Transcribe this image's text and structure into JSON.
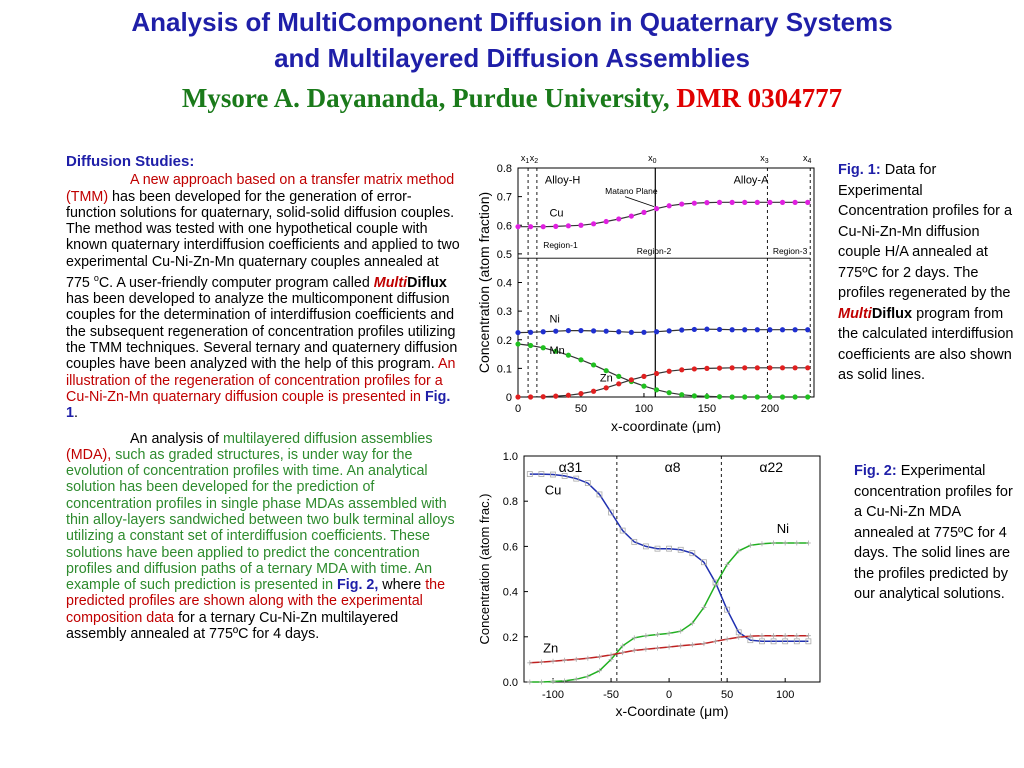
{
  "header": {
    "title_line1": "Analysis of MultiComponent Diffusion in Quaternary Systems",
    "title_line2": "and  Multilayered Diffusion Assemblies",
    "author": "Mysore A. Dayananda, Purdue University,",
    "grant": "DMR 0304777"
  },
  "body": {
    "heading": "Diffusion Studies:",
    "p1": {
      "s1": "A new approach based on a transfer matrix method (TMM)",
      "s2": " has been developed for the generation of error-function solutions for quaternary, solid-solid diffusion couples. The method was tested with one hypothetical couple with known quaternary interdiffusion coefficients and applied to two experimental Cu-Ni-Zn-Mn quaternary couples annealed at 775 ",
      "sup": "o",
      "s3": "C. A user-friendly computer program called ",
      "multi": "Multi",
      "diflux": "Diflux",
      "s4": " has been developed to analyze the multicomponent diffusion couples for the determination of interdiffusion coefficients and the subsequent regeneration of concentration profiles utilizing the TMM techniques. Several ternary and quaternery diffusion couples have been analyzed with the help of this program. ",
      "s5": "An illustration of the regeneration of concentration profiles for a Cu-Ni-Zn-Mn quaternary diffusion couple is presented in ",
      "fig": "Fig. 1",
      "s6": "."
    },
    "p2": {
      "s1": "An analysis of ",
      "s2": "multilayered diffusion assemblies",
      "s3": " (MDA),",
      "s4": " such as graded structures, is under way for the evolution of concentration profiles with time. An analytical solution has been developed for the prediction of concentration profiles in single phase MDAs assembled with thin alloy-layers sandwiched between two bulk terminal alloys utilizing a constant set of interdiffusion coefficients. These solutions have been applied to predict the concentration profiles and diffusion paths of a ternary MDA with time. An example of such prediction is presented in ",
      "fig": "Fig. 2,",
      "s5": " where ",
      "s6": "the predicted profiles are shown along with the experimental composition data",
      "s7": " for a ternary Cu-Ni-Zn multilayered assembly annealed at 775ºC for 4 days."
    }
  },
  "captions": {
    "fig1": {
      "label": "Fig. 1:",
      "t1": " Data for Experimental Concentration profiles for a Cu-Ni-Zn-Mn diffusion couple H/A annealed at 775ºC for 2 days. The profiles regenerated by the ",
      "multi": "Multi",
      "diflux": "Diflux",
      "t2": " program from the calculated interdiffusion coefficients are also shown as solid lines."
    },
    "fig2": {
      "label": "Fig. 2:",
      "t1": " Experimental concentration profiles for a Cu-Ni-Zn MDA annealed at 775ºC for 4 days. The solid lines are the profiles predicted by our analytical solutions."
    }
  },
  "chart_data": [
    {
      "type": "line",
      "xlabel": "x-coordinate (μm)",
      "ylabel": "Concentration (atom fraction)",
      "xlim": [
        0,
        235
      ],
      "ylim": [
        0,
        0.8
      ],
      "xticks": [
        0,
        50,
        100,
        150,
        200
      ],
      "yticks": [
        0,
        0.1,
        0.2,
        0.3,
        0.4,
        0.5,
        0.6,
        0.7,
        0.8
      ],
      "annotations": {
        "left_alloy": "Alloy-H",
        "right_alloy": "Alloy-A",
        "matano": "Matano Plane",
        "region1": "Region-1",
        "region2": "Region-2",
        "region3": "Region-3"
      },
      "markers": [
        {
          "label": "x",
          "sub": "1",
          "x": 8
        },
        {
          "label": "x",
          "sub": "2",
          "x": 15
        },
        {
          "label": "x",
          "sub": "0",
          "x": 109
        },
        {
          "label": "x",
          "sub": "3",
          "x": 198
        },
        {
          "label": "x",
          "sub": "4",
          "x": 232
        }
      ],
      "series": [
        {
          "name": "Cu",
          "color": "#e020e0",
          "x": [
            0,
            10,
            20,
            30,
            40,
            50,
            60,
            70,
            80,
            90,
            100,
            110,
            120,
            130,
            140,
            150,
            160,
            170,
            180,
            190,
            200,
            210,
            220,
            230
          ],
          "y": [
            0.595,
            0.595,
            0.595,
            0.596,
            0.598,
            0.6,
            0.605,
            0.613,
            0.622,
            0.632,
            0.645,
            0.658,
            0.668,
            0.674,
            0.677,
            0.679,
            0.68,
            0.68,
            0.68,
            0.68,
            0.68,
            0.68,
            0.68,
            0.68
          ]
        },
        {
          "name": "Ni",
          "color": "#1f2fd0",
          "x": [
            0,
            10,
            20,
            30,
            40,
            50,
            60,
            70,
            80,
            90,
            100,
            110,
            120,
            130,
            140,
            150,
            160,
            170,
            180,
            190,
            200,
            210,
            220,
            230
          ],
          "y": [
            0.225,
            0.226,
            0.228,
            0.23,
            0.232,
            0.232,
            0.231,
            0.23,
            0.228,
            0.226,
            0.226,
            0.228,
            0.231,
            0.234,
            0.236,
            0.237,
            0.236,
            0.235,
            0.235,
            0.235,
            0.235,
            0.235,
            0.235,
            0.235
          ]
        },
        {
          "name": "Mn",
          "color": "#20c020",
          "x": [
            0,
            10,
            20,
            30,
            40,
            50,
            60,
            70,
            80,
            90,
            100,
            110,
            120,
            130,
            140,
            150,
            160,
            170,
            180,
            190,
            200,
            210,
            220,
            230
          ],
          "y": [
            0.185,
            0.18,
            0.172,
            0.16,
            0.146,
            0.13,
            0.112,
            0.092,
            0.072,
            0.054,
            0.038,
            0.025,
            0.015,
            0.008,
            0.004,
            0.002,
            0.001,
            0.0,
            0.0,
            0.0,
            0.0,
            0.0,
            0.0,
            0.0
          ]
        },
        {
          "name": "Zn",
          "color": "#e02020",
          "x": [
            0,
            10,
            20,
            30,
            40,
            50,
            60,
            70,
            80,
            90,
            100,
            110,
            120,
            130,
            140,
            150,
            160,
            170,
            180,
            190,
            200,
            210,
            220,
            230
          ],
          "y": [
            0.0,
            0.0,
            0.001,
            0.003,
            0.006,
            0.012,
            0.02,
            0.032,
            0.046,
            0.06,
            0.072,
            0.082,
            0.09,
            0.095,
            0.098,
            0.1,
            0.101,
            0.102,
            0.102,
            0.102,
            0.102,
            0.102,
            0.102,
            0.102
          ]
        }
      ]
    },
    {
      "type": "line",
      "xlabel": "x-Coordinate (μm)",
      "ylabel": "Concentration (atom frac.)",
      "xlim": [
        -125,
        130
      ],
      "ylim": [
        0,
        1.0
      ],
      "xticks": [
        -100,
        -50,
        0,
        50,
        100
      ],
      "yticks": [
        0.0,
        0.2,
        0.4,
        0.6,
        0.8,
        1.0
      ],
      "phase_labels": [
        "α31",
        "α8",
        "α22"
      ],
      "boundaries": [
        -45,
        45
      ],
      "series": [
        {
          "name": "Cu",
          "color": "#1f2fb0",
          "x": [
            -120,
            -110,
            -100,
            -90,
            -80,
            -70,
            -60,
            -50,
            -40,
            -30,
            -20,
            -10,
            0,
            10,
            20,
            30,
            40,
            50,
            60,
            70,
            80,
            90,
            100,
            110,
            120
          ],
          "y": [
            0.92,
            0.92,
            0.918,
            0.912,
            0.9,
            0.88,
            0.83,
            0.75,
            0.67,
            0.62,
            0.6,
            0.59,
            0.59,
            0.585,
            0.57,
            0.53,
            0.44,
            0.32,
            0.22,
            0.185,
            0.18,
            0.18,
            0.18,
            0.18,
            0.18
          ]
        },
        {
          "name": "Ni",
          "color": "#20b020",
          "x": [
            -120,
            -110,
            -100,
            -90,
            -80,
            -70,
            -60,
            -50,
            -40,
            -30,
            -20,
            -10,
            0,
            10,
            20,
            30,
            40,
            50,
            60,
            70,
            80,
            90,
            100,
            110,
            120
          ],
          "y": [
            0.0,
            0.0,
            0.002,
            0.005,
            0.012,
            0.025,
            0.05,
            0.1,
            0.16,
            0.195,
            0.205,
            0.21,
            0.215,
            0.225,
            0.26,
            0.33,
            0.43,
            0.52,
            0.58,
            0.605,
            0.612,
            0.615,
            0.615,
            0.615,
            0.615
          ]
        },
        {
          "name": "Zn",
          "color": "#c02020",
          "x": [
            -120,
            -110,
            -100,
            -90,
            -80,
            -70,
            -60,
            -50,
            -40,
            -30,
            -20,
            -10,
            0,
            10,
            20,
            30,
            40,
            50,
            60,
            70,
            80,
            90,
            100,
            110,
            120
          ],
          "y": [
            0.085,
            0.088,
            0.092,
            0.096,
            0.1,
            0.105,
            0.112,
            0.12,
            0.13,
            0.14,
            0.145,
            0.15,
            0.155,
            0.16,
            0.165,
            0.17,
            0.18,
            0.19,
            0.198,
            0.203,
            0.205,
            0.205,
            0.205,
            0.205,
            0.205
          ]
        }
      ]
    }
  ]
}
